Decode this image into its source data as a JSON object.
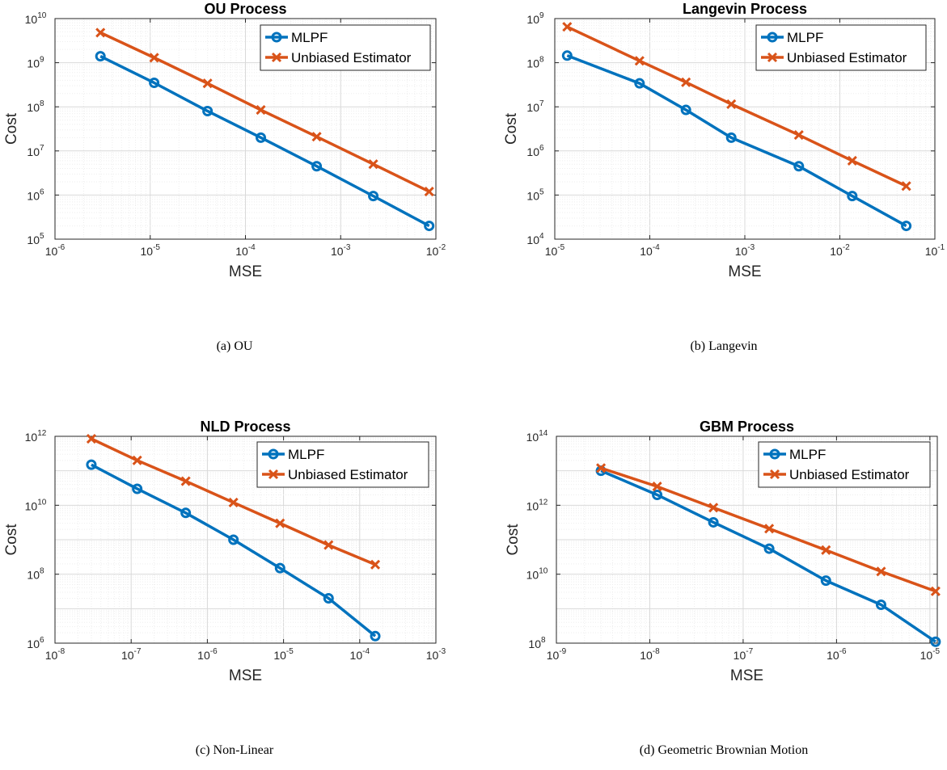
{
  "chart_data": [
    {
      "type": "line",
      "title": "OU Process",
      "xlabel": "MSE",
      "ylabel": "Cost",
      "xscale": "log",
      "yscale": "log",
      "xlim": [
        1e-06,
        0.01
      ],
      "ylim": [
        100000.0,
        10000000000.0
      ],
      "xtick_exponents": [
        "-6",
        "-5",
        "-4",
        "-3",
        "-2"
      ],
      "ytick_exponents": [
        "5",
        "6",
        "7",
        "8",
        "9",
        "10"
      ],
      "grid": true,
      "legend_position": "top-right",
      "caption": "(a)  OU",
      "series": [
        {
          "name": "MLPF",
          "color": "#0072BD",
          "marker": "circle",
          "x": [
            3e-06,
            1.1e-05,
            4e-05,
            0.000145,
            0.00056,
            0.0022,
            0.0085
          ],
          "y": [
            1400000000.0,
            350000000.0,
            80000000.0,
            20000000.0,
            4500000.0,
            950000.0,
            200000.0
          ]
        },
        {
          "name": "Unbiased Estimator",
          "color": "#D95319",
          "marker": "x",
          "x": [
            3e-06,
            1.1e-05,
            4e-05,
            0.000145,
            0.00056,
            0.0022,
            0.0085
          ],
          "y": [
            4800000000.0,
            1300000000.0,
            340000000.0,
            85000000.0,
            21000000.0,
            5000000.0,
            1200000.0
          ]
        }
      ]
    },
    {
      "type": "line",
      "title": "Langevin Process",
      "xlabel": "MSE",
      "ylabel": "Cost",
      "xscale": "log",
      "yscale": "log",
      "xlim": [
        1e-05,
        0.1
      ],
      "ylim": [
        10000.0,
        1000000000.0
      ],
      "xtick_exponents": [
        "-5",
        "-4",
        "-3",
        "-2",
        "-1"
      ],
      "ytick_exponents": [
        "4",
        "5",
        "6",
        "7",
        "8",
        "9"
      ],
      "grid": true,
      "legend_position": "top-right",
      "caption": "(b)  Langevin",
      "series": [
        {
          "name": "MLPF",
          "color": "#0072BD",
          "marker": "circle",
          "x": [
            1.35e-05,
            7.8e-05,
            0.00024,
            0.00072,
            0.0037,
            0.0135,
            0.05
          ],
          "y": [
            145000000.0,
            34000000.0,
            8500000.0,
            2000000.0,
            450000.0,
            95000.0,
            20000.0
          ]
        },
        {
          "name": "Unbiased Estimator",
          "color": "#D95319",
          "marker": "x",
          "x": [
            1.35e-05,
            7.8e-05,
            0.00024,
            0.00072,
            0.0037,
            0.0135,
            0.05
          ],
          "y": [
            650000000.0,
            110000000.0,
            36000000.0,
            11500000.0,
            2300000.0,
            600000.0,
            160000.0
          ]
        }
      ]
    },
    {
      "type": "line",
      "title": "NLD Process",
      "xlabel": "MSE",
      "ylabel": "Cost",
      "xscale": "log",
      "yscale": "log",
      "xlim": [
        1e-08,
        0.001
      ],
      "ylim": [
        1000000.0,
        1000000000000.0
      ],
      "xtick_exponents": [
        "-8",
        "-7",
        "-6",
        "-5",
        "-4",
        "-3"
      ],
      "ytick_exponents": [
        "6",
        "8",
        "10",
        "12"
      ],
      "grid": true,
      "legend_position": "top-right",
      "caption": "(c)  Non-Linear",
      "series": [
        {
          "name": "MLPF",
          "color": "#0072BD",
          "marker": "circle",
          "x": [
            3e-08,
            1.2e-07,
            5.2e-07,
            2.2e-06,
            9e-06,
            3.9e-05,
            0.00016
          ],
          "y": [
            150000000000.0,
            30000000000.0,
            6000000000.0,
            1000000000.0,
            150000000.0,
            20000000.0,
            1600000.0
          ]
        },
        {
          "name": "Unbiased Estimator",
          "color": "#D95319",
          "marker": "x",
          "x": [
            3e-08,
            1.2e-07,
            5.2e-07,
            2.2e-06,
            9e-06,
            3.9e-05,
            0.00016
          ],
          "y": [
            850000000000.0,
            200000000000.0,
            50000000000.0,
            12000000000.0,
            3000000000.0,
            700000000.0,
            190000000.0
          ]
        }
      ]
    },
    {
      "type": "line",
      "title": "GBM Process",
      "xlabel": "MSE",
      "ylabel": "Cost",
      "xscale": "log",
      "yscale": "log",
      "xlim": [
        1e-09,
        1.2e-05
      ],
      "ylim": [
        100000000.0,
        100000000000000.0
      ],
      "xtick_exponents": [
        "-9",
        "-8",
        "-7",
        "-6",
        "-5"
      ],
      "ytick_exponents": [
        "8",
        "10",
        "12",
        "14"
      ],
      "grid": true,
      "legend_position": "top-right",
      "caption": "(d)  Geometric Brownian Motion",
      "series": [
        {
          "name": "MLPF",
          "color": "#0072BD",
          "marker": "circle",
          "x": [
            3e-09,
            1.2e-08,
            4.8e-08,
            1.9e-07,
            7.7e-07,
            3e-06,
            1.15e-05
          ],
          "y": [
            10000000000000.0,
            2000000000000.0,
            320000000000.0,
            55000000000.0,
            6500000000.0,
            1300000000.0,
            110000000.0
          ]
        },
        {
          "name": "Unbiased Estimator",
          "color": "#D95319",
          "marker": "x",
          "x": [
            3e-09,
            1.2e-08,
            4.8e-08,
            1.9e-07,
            7.7e-07,
            3e-06,
            1.15e-05
          ],
          "y": [
            12000000000000.0,
            3500000000000.0,
            850000000000.0,
            210000000000.0,
            50000000000.0,
            12000000000.0,
            3200000000.0
          ]
        }
      ]
    }
  ]
}
